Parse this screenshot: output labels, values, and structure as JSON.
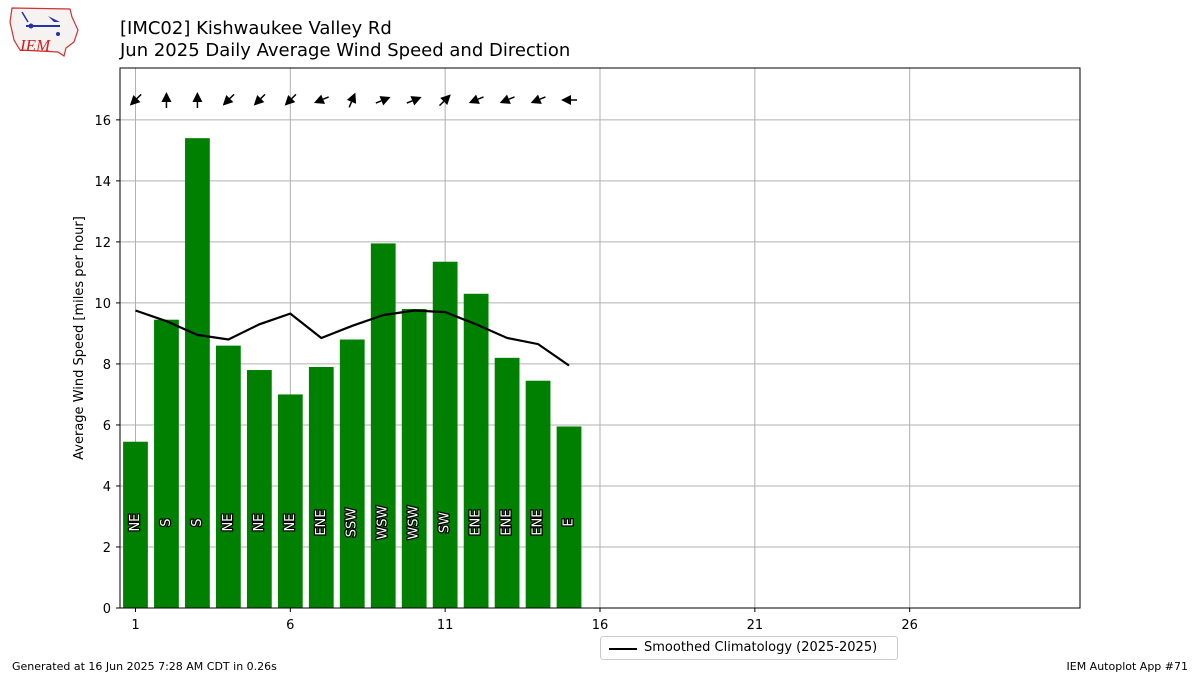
{
  "titles": {
    "line1": "[IMC02] Kishwaukee Valley Rd",
    "line2": "Jun 2025 Daily Average Wind Speed and Direction"
  },
  "logo": {
    "text": "IEM"
  },
  "footer": {
    "left": "Generated at 16 Jun 2025 7:28 AM CDT in 0.26s",
    "right": "IEM Autoplot App #71"
  },
  "chart_data": {
    "type": "bar",
    "ylabel": "Average Wind Speed [miles per hour]",
    "xlabel": "",
    "xlim": [
      0.5,
      31.5
    ],
    "ylim": [
      0,
      17.7
    ],
    "xticks": [
      1,
      6,
      11,
      16,
      21,
      26
    ],
    "yticks": [
      0,
      2,
      4,
      6,
      8,
      10,
      12,
      14,
      16
    ],
    "grid": true,
    "legend_position": "below-center",
    "bar_color": "#008000",
    "days": [
      1,
      2,
      3,
      4,
      5,
      6,
      7,
      8,
      9,
      10,
      11,
      12,
      13,
      14,
      15
    ],
    "values": [
      5.45,
      9.45,
      15.4,
      8.6,
      7.8,
      7.0,
      7.9,
      8.8,
      11.95,
      9.8,
      11.35,
      10.3,
      8.2,
      7.45,
      5.95
    ],
    "directions": [
      "NE",
      "S",
      "S",
      "NE",
      "NE",
      "NE",
      "ENE",
      "SSW",
      "WSW",
      "WSW",
      "SW",
      "ENE",
      "ENE",
      "ENE",
      "E"
    ],
    "direction_degrees": [
      45,
      180,
      180,
      45,
      45,
      45,
      67.5,
      202.5,
      247.5,
      247.5,
      225,
      67.5,
      67.5,
      67.5,
      90
    ],
    "climatology": {
      "name": "Smoothed Climatology (2025-2025)",
      "x": [
        1,
        2,
        3,
        4,
        5,
        6,
        7,
        8,
        9,
        10,
        11,
        12,
        13,
        14,
        15
      ],
      "values": [
        9.75,
        9.4,
        8.95,
        8.8,
        9.3,
        9.65,
        8.85,
        9.25,
        9.6,
        9.75,
        9.7,
        9.3,
        8.85,
        8.65,
        7.95
      ]
    }
  }
}
